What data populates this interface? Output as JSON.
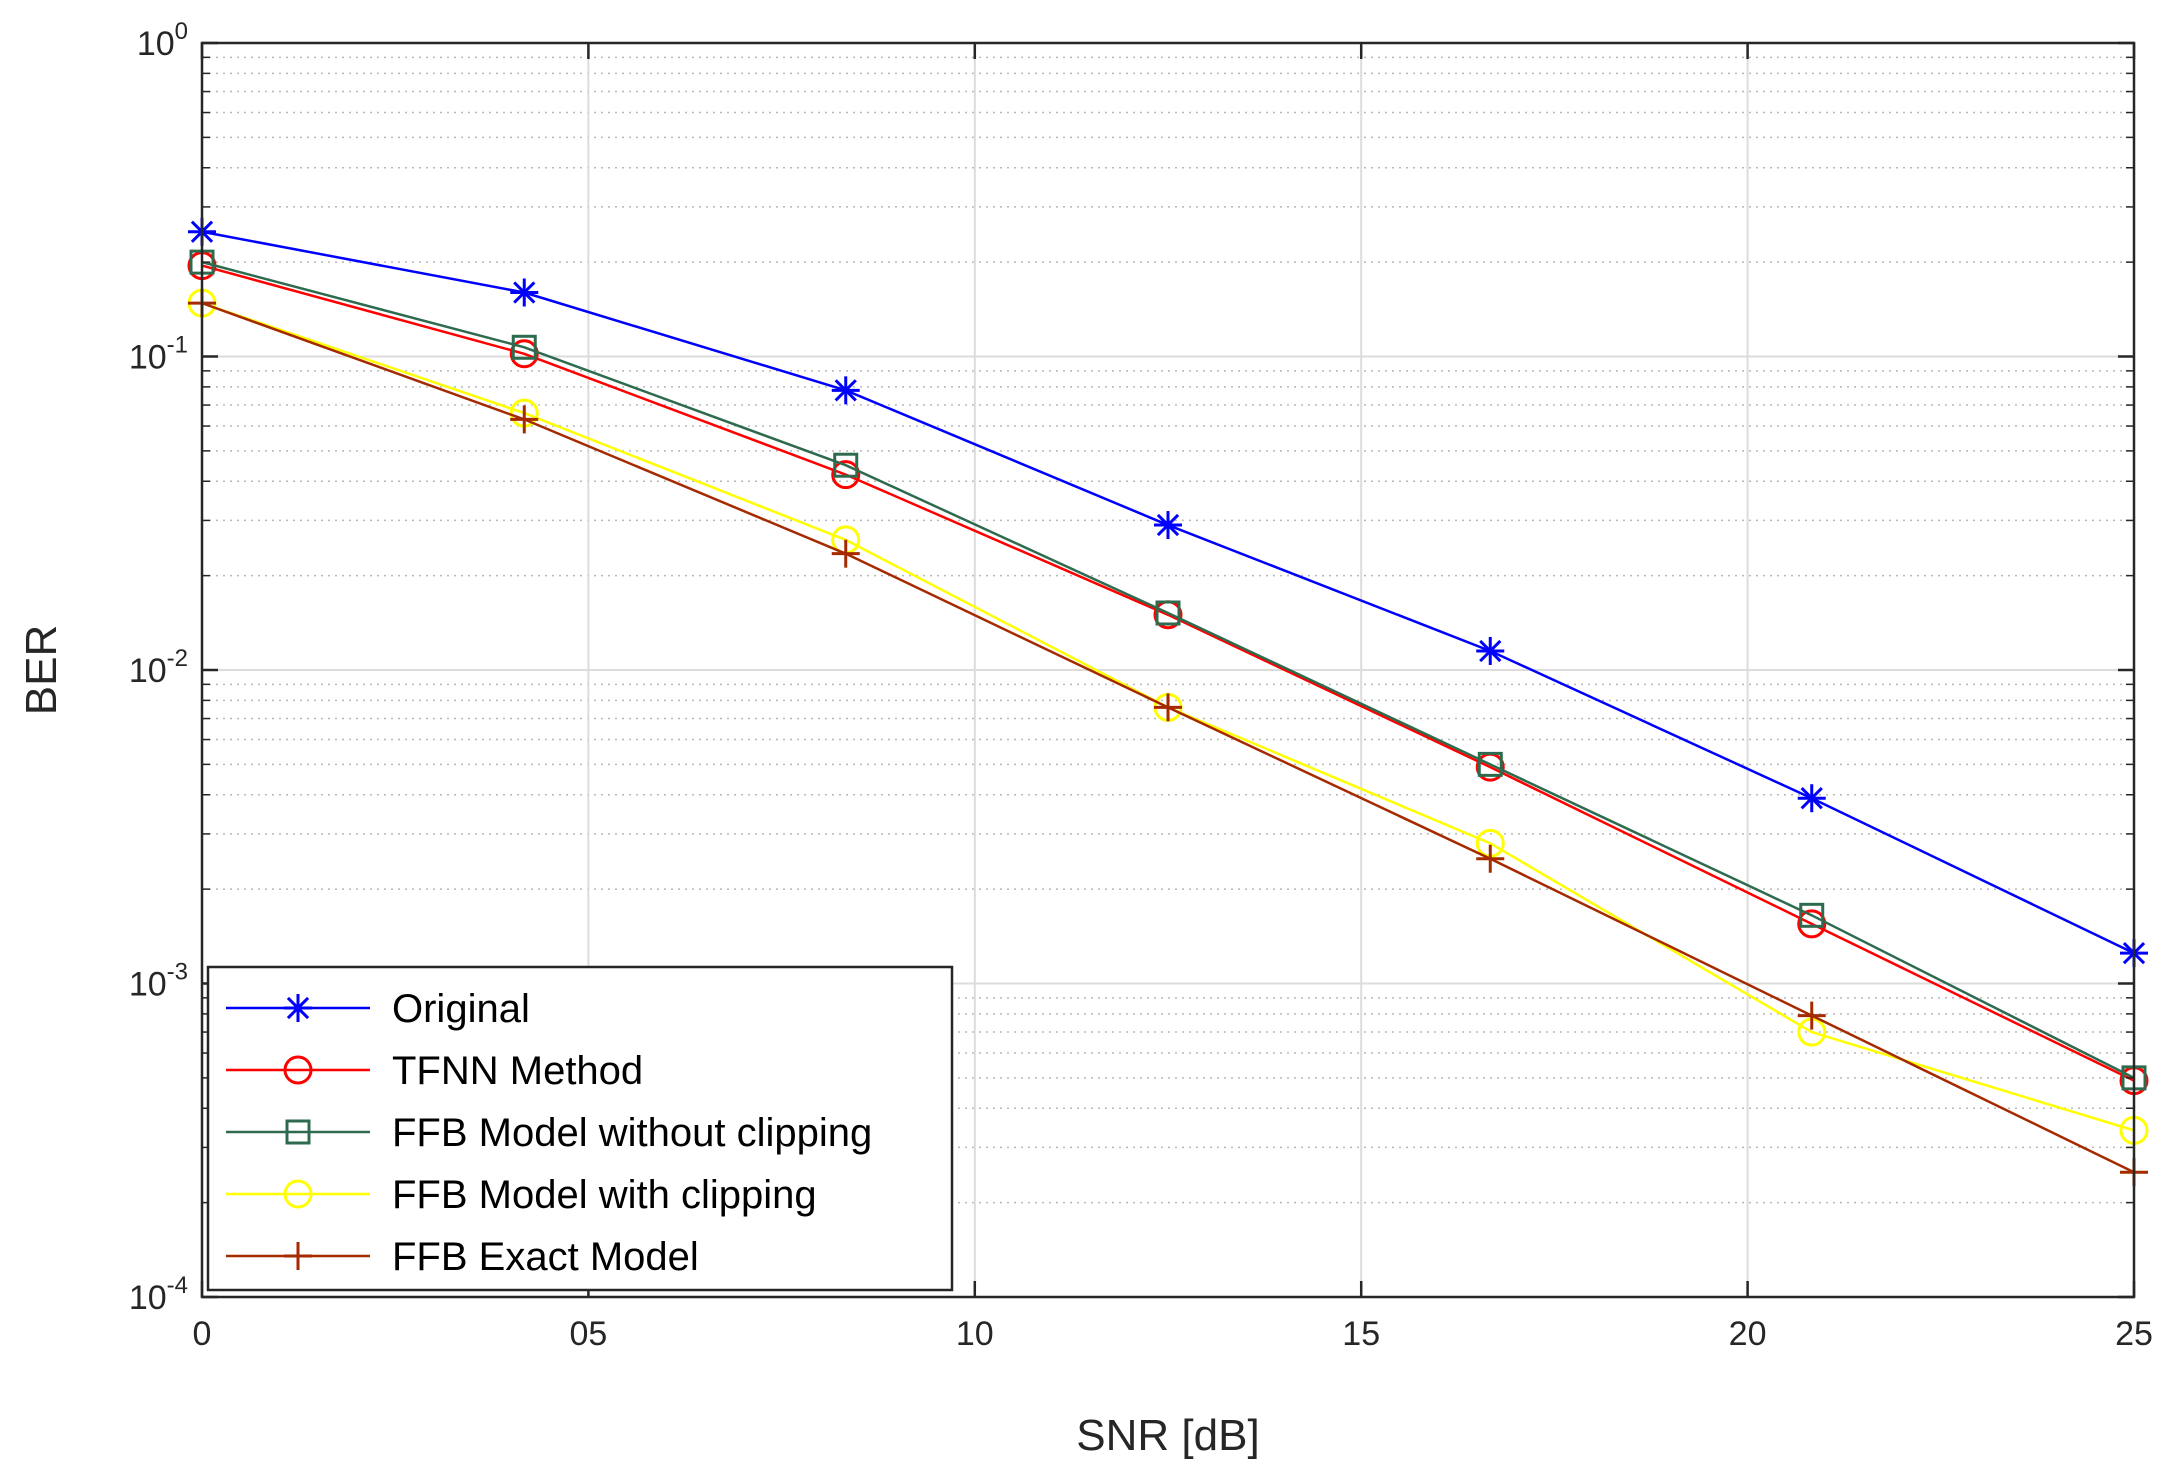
{
  "chart_data": {
    "type": "line",
    "title": "",
    "xlabel": "SNR [dB]",
    "ylabel": "BER",
    "y_scale": "log",
    "xlim": [
      0,
      25
    ],
    "ylim_exponents": [
      -4,
      0
    ],
    "grid": true,
    "minor_grid": true,
    "legend_position": "bottom-left",
    "x_ticks": [
      {
        "value": 0,
        "label": "0"
      },
      {
        "value": 5,
        "label": "05"
      },
      {
        "value": 10,
        "label": "10"
      },
      {
        "value": 15,
        "label": "15"
      },
      {
        "value": 20,
        "label": "20"
      },
      {
        "value": 25,
        "label": "25"
      }
    ],
    "y_ticks": [
      {
        "exp": 0,
        "base": "10",
        "power": "0"
      },
      {
        "exp": -1,
        "base": "10",
        "power": "-1"
      },
      {
        "exp": -2,
        "base": "10",
        "power": "-2"
      },
      {
        "exp": -3,
        "base": "10",
        "power": "-3"
      },
      {
        "exp": -4,
        "base": "10",
        "power": "-4"
      }
    ],
    "x": [
      0,
      4.17,
      8.33,
      12.5,
      16.67,
      20.83,
      25
    ],
    "series": [
      {
        "name": "Original",
        "color": "#0000ff",
        "marker": "asterisk",
        "values": [
          0.25,
          0.16,
          0.078,
          0.029,
          0.0115,
          0.0039,
          0.00125
        ]
      },
      {
        "name": "TFNN Method",
        "color": "#ff0000",
        "marker": "circle",
        "values": [
          0.195,
          0.102,
          0.042,
          0.015,
          0.0049,
          0.00155,
          0.00049
        ]
      },
      {
        "name": "FFB Model without clipping",
        "color": "#2e6b4e",
        "marker": "square",
        "values": [
          0.2,
          0.107,
          0.045,
          0.0152,
          0.005,
          0.00165,
          0.0005
        ]
      },
      {
        "name": "FFB Model with clipping",
        "color": "#ffff00",
        "marker": "circle",
        "values": [
          0.148,
          0.066,
          0.026,
          0.0076,
          0.0028,
          0.0007,
          0.00034
        ]
      },
      {
        "name": "FFB Exact Model",
        "color": "#a52a00",
        "marker": "plus",
        "values": [
          0.148,
          0.063,
          0.0235,
          0.0076,
          0.0025,
          0.00079,
          0.00025
        ]
      }
    ]
  }
}
